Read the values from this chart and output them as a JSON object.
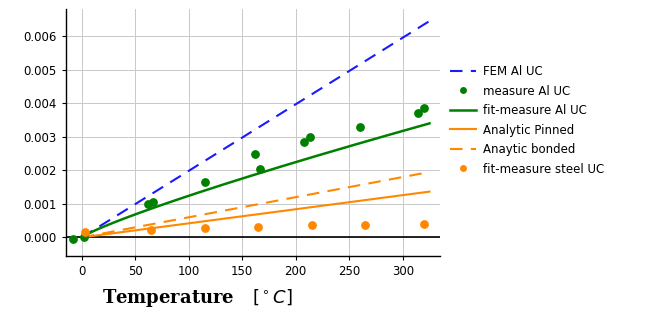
{
  "xlim": [
    -15,
    335
  ],
  "ylim": [
    -0.00055,
    0.0068
  ],
  "yticks": [
    0.0,
    0.001,
    0.002,
    0.003,
    0.004,
    0.005,
    0.006
  ],
  "xticks": [
    0,
    50,
    100,
    150,
    200,
    250,
    300
  ],
  "bg_color": "#ffffff",
  "grid_color": "#c8c8c8",
  "fem_al_uc": {
    "label": "FEM Al UC",
    "color": "#1a1aff",
    "slope": 1.985e-05
  },
  "measure_al_uc": {
    "label": "measure Al UC",
    "color": "#008000",
    "x": [
      -8,
      2,
      62,
      67,
      115,
      162,
      167,
      208,
      213,
      260,
      314,
      320
    ],
    "y": [
      -5.5e-05,
      2e-05,
      0.001,
      0.001045,
      0.00165,
      0.00248,
      0.00205,
      0.00284,
      0.003,
      0.0033,
      0.0037,
      0.00385
    ]
  },
  "fit_al_a": 2.42e-05,
  "fit_al_b": 0.855,
  "fit_measure_al_uc": {
    "label": "fit-measure Al UC",
    "color": "#008000"
  },
  "analytic_pinned": {
    "label": "Analytic Pinned",
    "color": "#ff8800",
    "slope": 4.2e-06
  },
  "analytic_bonded": {
    "label": "Anaytic bonded",
    "color": "#ff8800",
    "slope": 6e-06
  },
  "fit_measure_steel_uc": {
    "label": "fit-measure steel UC",
    "color": "#ff8800",
    "x": [
      3,
      65,
      115,
      165,
      215,
      265,
      320
    ],
    "y": [
      0.00017,
      0.00022,
      0.00029,
      0.00032,
      0.00036,
      0.00038,
      0.0004
    ]
  },
  "xlabel": "Temperature",
  "xlabel_unit": "[{\\degree}C]"
}
